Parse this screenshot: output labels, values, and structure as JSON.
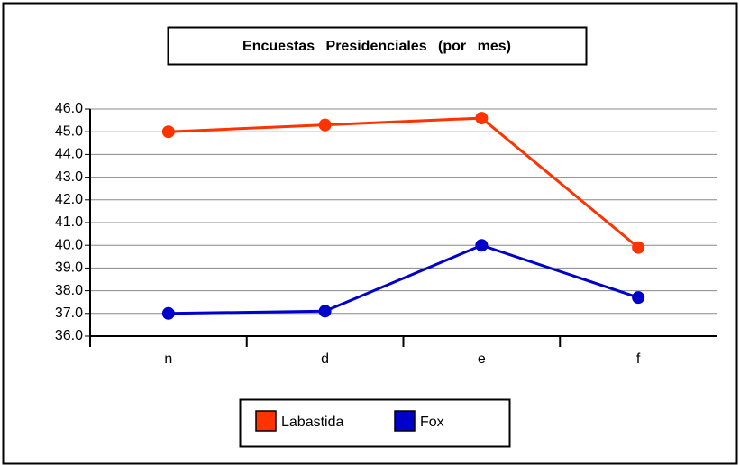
{
  "chart_data": {
    "type": "line",
    "title": "Encuestas Presidenciales (por mes)",
    "categories": [
      "n",
      "d",
      "e",
      "f"
    ],
    "series": [
      {
        "name": "Labastida",
        "color": "#ff3300",
        "values": [
          45.0,
          45.3,
          45.6,
          39.9
        ]
      },
      {
        "name": "Fox",
        "color": "#0000cc",
        "values": [
          37.0,
          37.1,
          40.0,
          37.7
        ]
      }
    ],
    "ylim": [
      36,
      46
    ],
    "yticks": [
      {
        "value": 36,
        "label": "36.0"
      },
      {
        "value": 37,
        "label": "37.0"
      },
      {
        "value": 38,
        "label": "38.0"
      },
      {
        "value": 39,
        "label": "39.0"
      },
      {
        "value": 40,
        "label": "40.0"
      },
      {
        "value": 41,
        "label": "41.0"
      },
      {
        "value": 42,
        "label": "42.0"
      },
      {
        "value": 43,
        "label": "43.0"
      },
      {
        "value": 44,
        "label": "44.0"
      },
      {
        "value": 45,
        "label": "45.0"
      },
      {
        "value": 46,
        "label": "46.0"
      }
    ],
    "grid": true
  }
}
